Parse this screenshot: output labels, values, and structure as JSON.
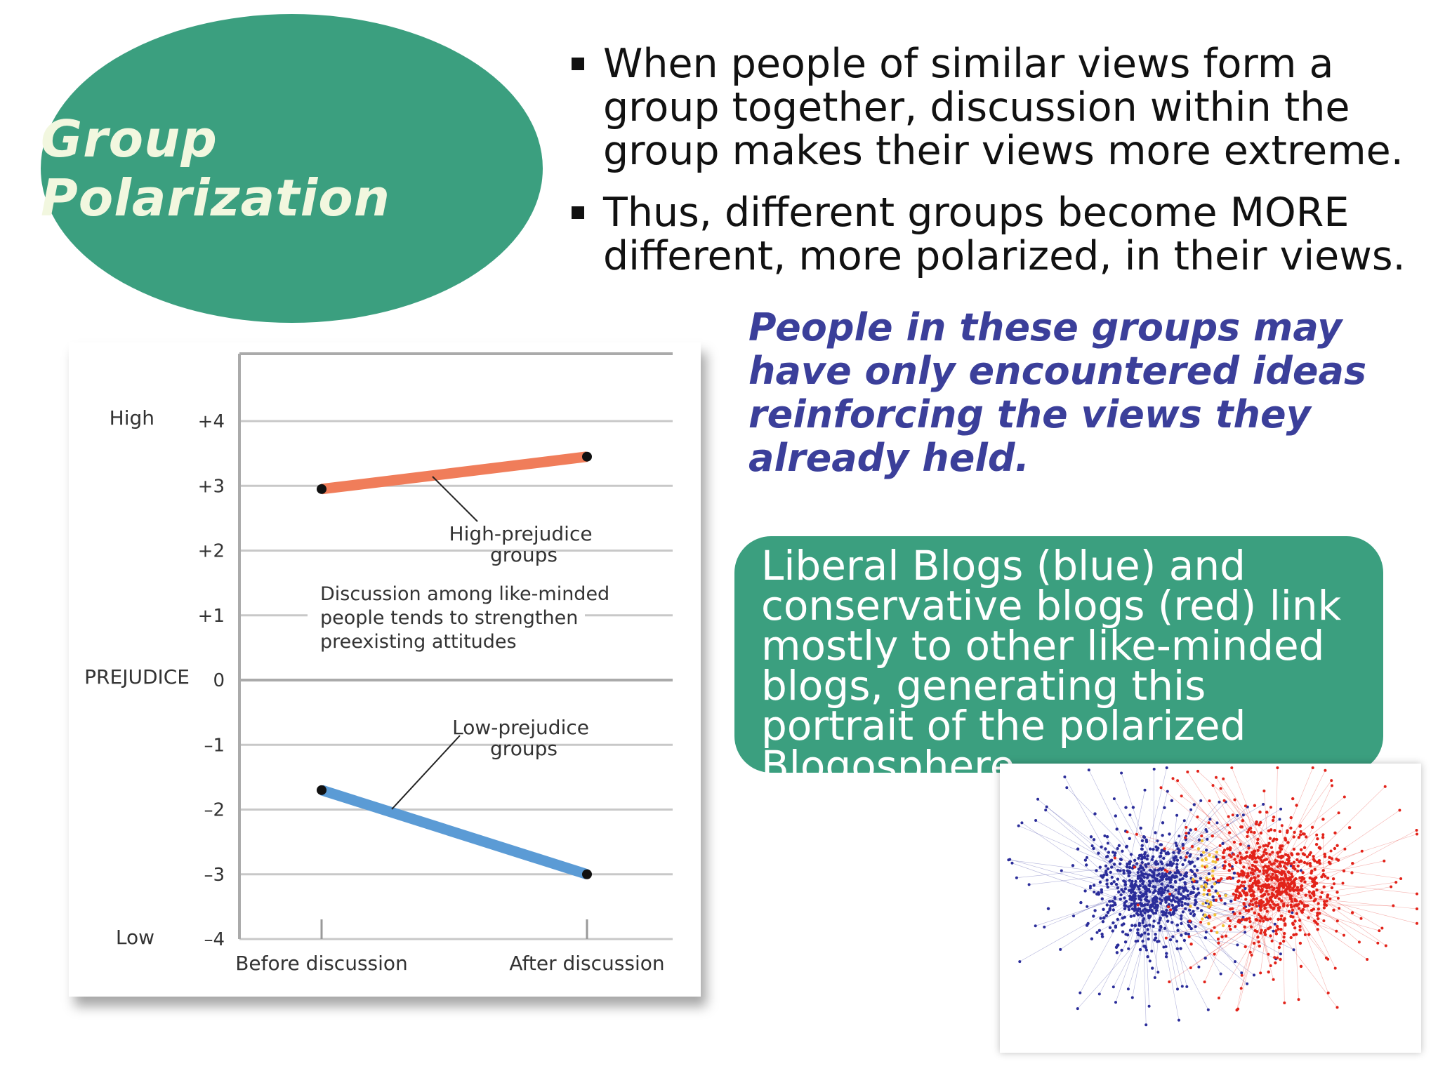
{
  "title": "Group Polarization",
  "bullets": [
    "When people of similar views form a group together, discussion within the group makes their views more extreme.",
    "Thus, different groups  become MORE different, more polarized, in their views."
  ],
  "quote": "People in these groups may have only encountered ideas reinforcing the views they already held.",
  "blog_caption": "Liberal Blogs (blue) and conservative blogs (red) link mostly to other like-minded blogs, generating this portrait of the polarized Blogosphere.",
  "colors": {
    "accent_green": "#3b9f7f",
    "quote_blue": "#3b3f9a",
    "high_line": "#f07d5a",
    "low_line": "#5b9bd5",
    "liberal_blue": "#2b2d9a",
    "conservative_red": "#e2231a"
  },
  "chart_data": {
    "type": "line",
    "categories": [
      "Before discussion",
      "After discussion"
    ],
    "ylabel": "PREJUDICE",
    "ylim": [
      -4,
      4
    ],
    "yticks": [
      {
        "value": 4,
        "label": "+4"
      },
      {
        "value": 3,
        "label": "+3"
      },
      {
        "value": 2,
        "label": "+2"
      },
      {
        "value": 1,
        "label": "+1"
      },
      {
        "value": 0,
        "label": "0"
      },
      {
        "value": -1,
        "label": "–1"
      },
      {
        "value": -2,
        "label": "–2"
      },
      {
        "value": -3,
        "label": "–3"
      },
      {
        "value": -4,
        "label": "–4"
      }
    ],
    "high_label": "High",
    "low_label": "Low",
    "series": [
      {
        "name": "High-prejudice groups",
        "values": [
          2.95,
          3.45
        ],
        "color": "#f07d5a"
      },
      {
        "name": "Low-prejudice groups",
        "values": [
          -1.7,
          -3.0
        ],
        "color": "#5b9bd5"
      }
    ],
    "annotation": "Discussion among like-minded people tends to strengthen preexisting attitudes",
    "grid": true
  }
}
